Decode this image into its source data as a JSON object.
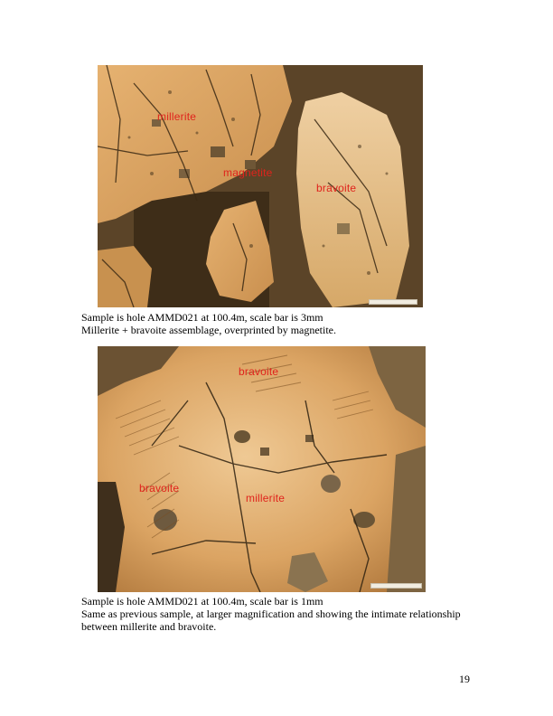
{
  "figure1": {
    "labels": {
      "millerite": "millerite",
      "magnetite": "magnetite",
      "bravoite": "bravoite"
    },
    "caption_line1": "Sample is hole AMMD021 at 100.4m, scale bar is 3mm",
    "caption_line2": "Millerite + bravoite assemblage, overprinted by magnetite."
  },
  "figure2": {
    "labels": {
      "bravoite_top": "bravoite",
      "bravoite_left": "bravoite",
      "millerite": "millerite"
    },
    "caption_line1": "Sample is hole AMMD021 at 100.4m, scale bar is 1mm",
    "caption_line2": "Same as previous sample, at larger magnification and showing the intimate relationship",
    "caption_line3": "between millerite and bravoite."
  },
  "colors": {
    "sulfide": "#d9a35e",
    "gangue": "#5a4326",
    "label": "#e0231c"
  },
  "page_number": "19"
}
